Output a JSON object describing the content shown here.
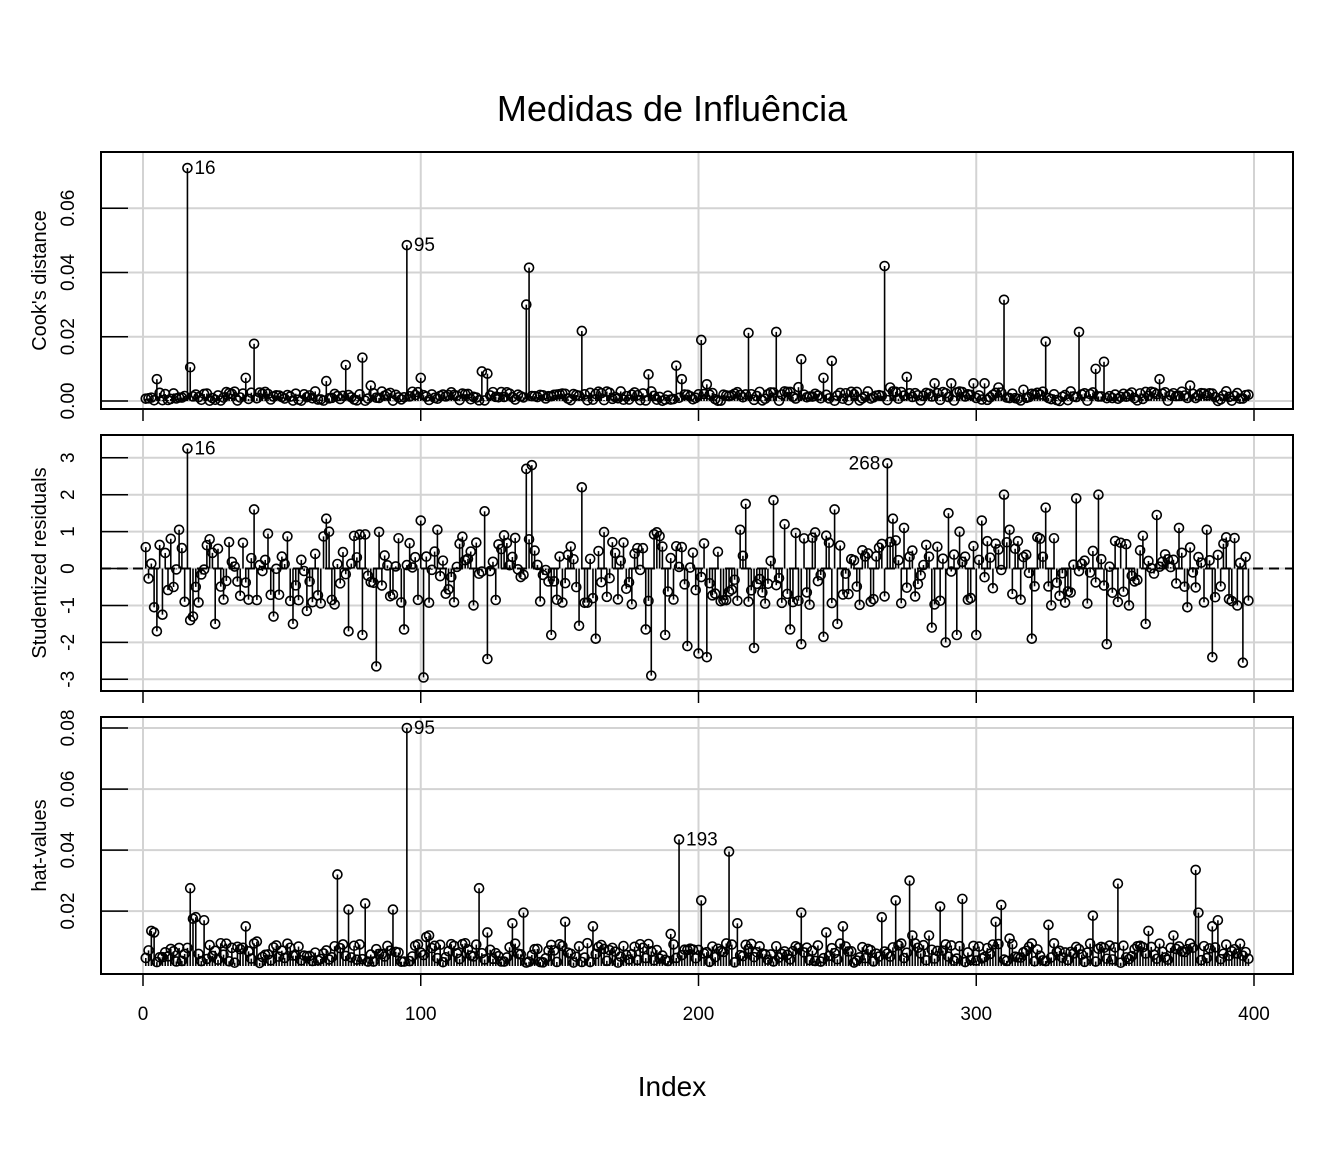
{
  "title": "Medidas de Influência",
  "xlabel": "Index",
  "colors": {
    "grid": "#d3d3d3",
    "ink": "#000000",
    "background": "#ffffff"
  },
  "chart_data": [
    {
      "type": "scatter",
      "name": "cooks",
      "style": "needle",
      "ylabel": "Cook's distance",
      "xlim": [
        0,
        400
      ],
      "ylim": [
        0,
        0.075
      ],
      "xticks": [
        0,
        100,
        200,
        300,
        400
      ],
      "yticks": [
        0.0,
        0.02,
        0.04,
        0.06
      ],
      "ytick_labels": [
        "0.00",
        "0.02",
        "0.04",
        "0.06"
      ],
      "baseline": null,
      "grid": true,
      "labels": [
        {
          "x": 16,
          "text": "16",
          "side": "right"
        },
        {
          "x": 95,
          "text": "95",
          "side": "right"
        }
      ],
      "spikes": [
        [
          16,
          0.0725
        ],
        [
          17,
          0.0105
        ],
        [
          40,
          0.0178
        ],
        [
          73,
          0.0112
        ],
        [
          79,
          0.0135
        ],
        [
          95,
          0.0485
        ],
        [
          138,
          0.03
        ],
        [
          139,
          0.0415
        ],
        [
          158,
          0.0218
        ],
        [
          192,
          0.011
        ],
        [
          201,
          0.019
        ],
        [
          218,
          0.0212
        ],
        [
          228,
          0.0215
        ],
        [
          237,
          0.013
        ],
        [
          248,
          0.0125
        ],
        [
          267,
          0.042
        ],
        [
          310,
          0.0315
        ],
        [
          325,
          0.0185
        ],
        [
          337,
          0.0215
        ],
        [
          343,
          0.01
        ],
        [
          346,
          0.0122
        ],
        [
          5,
          0.0068
        ],
        [
          37,
          0.0072
        ],
        [
          66,
          0.0062
        ],
        [
          82,
          0.0048
        ],
        [
          100,
          0.0072
        ],
        [
          122,
          0.0092
        ],
        [
          124,
          0.0085
        ],
        [
          182,
          0.0083
        ],
        [
          194,
          0.0068
        ],
        [
          203,
          0.0052
        ],
        [
          236,
          0.0043
        ],
        [
          245,
          0.0072
        ],
        [
          251,
          0.0025
        ],
        [
          269,
          0.0042
        ],
        [
          275,
          0.0075
        ],
        [
          285,
          0.0055
        ],
        [
          291,
          0.0055
        ],
        [
          299,
          0.0055
        ],
        [
          303,
          0.0055
        ],
        [
          308,
          0.0042
        ],
        [
          317,
          0.0035
        ],
        [
          366,
          0.0068
        ],
        [
          377,
          0.0048
        ],
        [
          390,
          0.003
        ]
      ],
      "seed": 11,
      "n": 398,
      "base_range": [
        0.0,
        0.003
      ]
    },
    {
      "type": "scatter",
      "name": "rstudent",
      "style": "needle",
      "ylabel": "Studentized residuals",
      "xlim": [
        0,
        400
      ],
      "ylim": [
        -3.1,
        3.4
      ],
      "xticks": [
        0,
        100,
        200,
        300,
        400
      ],
      "yticks": [
        -3,
        -2,
        -1,
        0,
        1,
        2,
        3
      ],
      "ytick_labels": [
        "-3",
        "-2",
        "-1",
        "0",
        "1",
        "2",
        "3"
      ],
      "baseline": 0,
      "grid": true,
      "labels": [
        {
          "x": 16,
          "text": "16",
          "side": "right"
        },
        {
          "x": 268,
          "text": "268",
          "side": "left"
        }
      ],
      "spikes": [
        [
          1,
          0.58
        ],
        [
          4,
          -1.05
        ],
        [
          5,
          -1.7
        ],
        [
          7,
          -1.25
        ],
        [
          11,
          -0.5
        ],
        [
          13,
          1.05
        ],
        [
          15,
          -0.9
        ],
        [
          16,
          3.25
        ],
        [
          17,
          -1.4
        ],
        [
          18,
          -1.3
        ],
        [
          26,
          -1.5
        ],
        [
          40,
          1.6
        ],
        [
          47,
          -1.3
        ],
        [
          54,
          -1.5
        ],
        [
          59,
          -1.15
        ],
        [
          66,
          1.35
        ],
        [
          74,
          -1.7
        ],
        [
          79,
          -1.8
        ],
        [
          84,
          -2.65
        ],
        [
          94,
          -1.65
        ],
        [
          100,
          1.3
        ],
        [
          101,
          -2.95
        ],
        [
          106,
          1.05
        ],
        [
          124,
          -2.45
        ],
        [
          123,
          1.55
        ],
        [
          138,
          2.7
        ],
        [
          140,
          2.8
        ],
        [
          147,
          -1.8
        ],
        [
          157,
          -1.55
        ],
        [
          158,
          2.2
        ],
        [
          163,
          -1.9
        ],
        [
          181,
          -1.65
        ],
        [
          183,
          -2.9
        ],
        [
          188,
          -1.8
        ],
        [
          196,
          -2.1
        ],
        [
          200,
          -2.3
        ],
        [
          203,
          -2.4
        ],
        [
          215,
          1.05
        ],
        [
          217,
          1.75
        ],
        [
          220,
          -2.15
        ],
        [
          224,
          -0.95
        ],
        [
          227,
          1.85
        ],
        [
          231,
          1.2
        ],
        [
          233,
          -1.65
        ],
        [
          237,
          -2.05
        ],
        [
          245,
          -1.85
        ],
        [
          249,
          1.6
        ],
        [
          250,
          -1.5
        ],
        [
          268,
          2.85
        ],
        [
          270,
          1.35
        ],
        [
          274,
          1.1
        ],
        [
          284,
          -1.6
        ],
        [
          289,
          -2.0
        ],
        [
          290,
          1.5
        ],
        [
          293,
          -1.8
        ],
        [
          300,
          -1.8
        ],
        [
          302,
          1.3
        ],
        [
          310,
          2.0
        ],
        [
          312,
          1.05
        ],
        [
          320,
          -1.9
        ],
        [
          325,
          1.65
        ],
        [
          336,
          1.9
        ],
        [
          344,
          2.0
        ],
        [
          347,
          -2.05
        ],
        [
          355,
          -1.0
        ],
        [
          361,
          -1.5
        ],
        [
          365,
          1.45
        ],
        [
          373,
          1.1
        ],
        [
          376,
          -1.05
        ],
        [
          383,
          1.05
        ],
        [
          385,
          -2.4
        ],
        [
          394,
          -1.0
        ],
        [
          396,
          -2.55
        ]
      ],
      "seed": 23,
      "n": 398,
      "base_range": [
        -1.0,
        1.0
      ]
    },
    {
      "type": "scatter",
      "name": "hat",
      "style": "needle",
      "ylabel": "hat-values",
      "xlim": [
        0,
        400
      ],
      "ylim": [
        0.002,
        0.081
      ],
      "xticks": [
        0,
        100,
        200,
        300,
        400
      ],
      "yticks": [
        0.02,
        0.04,
        0.06,
        0.08
      ],
      "ytick_labels": [
        "0.02",
        "0.04",
        "0.06",
        "0.08"
      ],
      "baseline": null,
      "grid": true,
      "labels": [
        {
          "x": 95,
          "text": "95",
          "side": "right"
        },
        {
          "x": 193,
          "text": "193",
          "side": "right"
        }
      ],
      "spikes": [
        [
          3,
          0.0135
        ],
        [
          4,
          0.013
        ],
        [
          17,
          0.0275
        ],
        [
          18,
          0.0175
        ],
        [
          19,
          0.018
        ],
        [
          22,
          0.017
        ],
        [
          37,
          0.015
        ],
        [
          41,
          0.01
        ],
        [
          70,
          0.032
        ],
        [
          74,
          0.0205
        ],
        [
          80,
          0.0225
        ],
        [
          90,
          0.0205
        ],
        [
          95,
          0.08
        ],
        [
          102,
          0.0115
        ],
        [
          103,
          0.012
        ],
        [
          121,
          0.0275
        ],
        [
          124,
          0.013
        ],
        [
          133,
          0.016
        ],
        [
          137,
          0.0195
        ],
        [
          152,
          0.0165
        ],
        [
          162,
          0.015
        ],
        [
          190,
          0.0125
        ],
        [
          193,
          0.0435
        ],
        [
          201,
          0.0235
        ],
        [
          211,
          0.0395
        ],
        [
          214,
          0.016
        ],
        [
          237,
          0.0195
        ],
        [
          246,
          0.013
        ],
        [
          252,
          0.015
        ],
        [
          266,
          0.018
        ],
        [
          271,
          0.0235
        ],
        [
          276,
          0.03
        ],
        [
          277,
          0.012
        ],
        [
          283,
          0.012
        ],
        [
          287,
          0.0215
        ],
        [
          295,
          0.024
        ],
        [
          307,
          0.0165
        ],
        [
          309,
          0.022
        ],
        [
          312,
          0.011
        ],
        [
          326,
          0.0155
        ],
        [
          342,
          0.0185
        ],
        [
          351,
          0.029
        ],
        [
          362,
          0.0135
        ],
        [
          371,
          0.012
        ],
        [
          379,
          0.0335
        ],
        [
          380,
          0.0195
        ],
        [
          385,
          0.015
        ],
        [
          387,
          0.017
        ]
      ],
      "seed": 37,
      "n": 398,
      "base_range": [
        0.003,
        0.0095
      ]
    }
  ]
}
